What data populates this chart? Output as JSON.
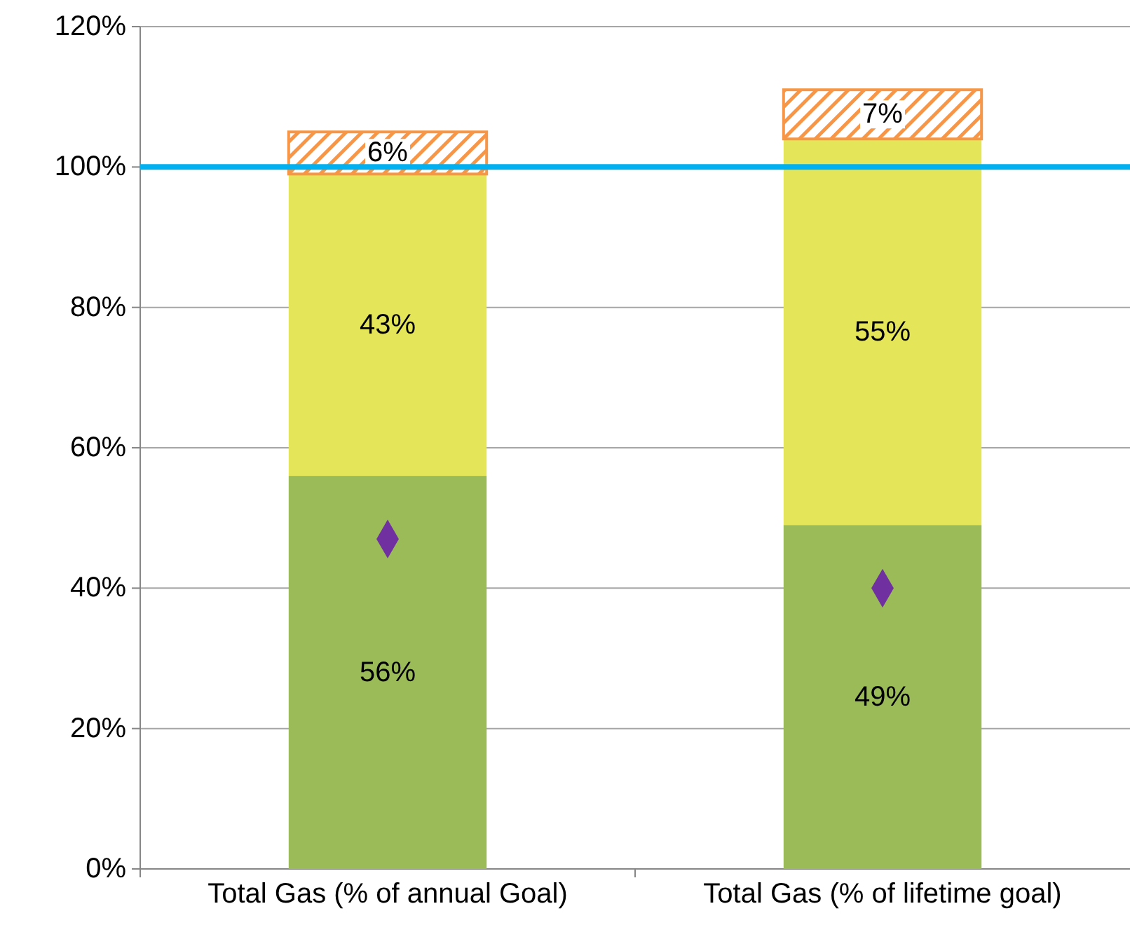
{
  "chart_data": {
    "type": "bar",
    "stacked": true,
    "categories": [
      "Total Gas (% of annual Goal)",
      "Total Gas (% of lifetime goal)"
    ],
    "series": [
      {
        "color": "#9bbb59",
        "values": [
          56,
          49
        ],
        "value_labels": [
          "56%",
          "49%"
        ]
      },
      {
        "color": "#e5e55a",
        "values": [
          43,
          55
        ],
        "value_labels": [
          "43%",
          "55%"
        ]
      },
      {
        "color": "#f79646",
        "values": [
          6,
          7
        ],
        "value_labels": [
          "6%",
          "7%"
        ]
      },
      {
        "type": "scatter",
        "color": "#7030a0",
        "marker": "diamond",
        "x": [
          "Total Gas (% of annual Goal)",
          "Total Gas (% of lifetime goal)"
        ],
        "values": [
          47,
          40
        ]
      }
    ],
    "ylim": [
      0,
      120
    ],
    "yticks": [
      {
        "value": 0,
        "label": "0%"
      },
      {
        "value": 20,
        "label": "20%"
      },
      {
        "value": 40,
        "label": "40%"
      },
      {
        "value": 60,
        "label": "60%"
      },
      {
        "value": 80,
        "label": "80%"
      },
      {
        "value": 100,
        "label": "100%"
      },
      {
        "value": 120,
        "label": "120%"
      }
    ],
    "grid": "y",
    "ref_lines": [
      {
        "axis": "y",
        "value": 100,
        "color": "#00b0f0"
      }
    ]
  }
}
